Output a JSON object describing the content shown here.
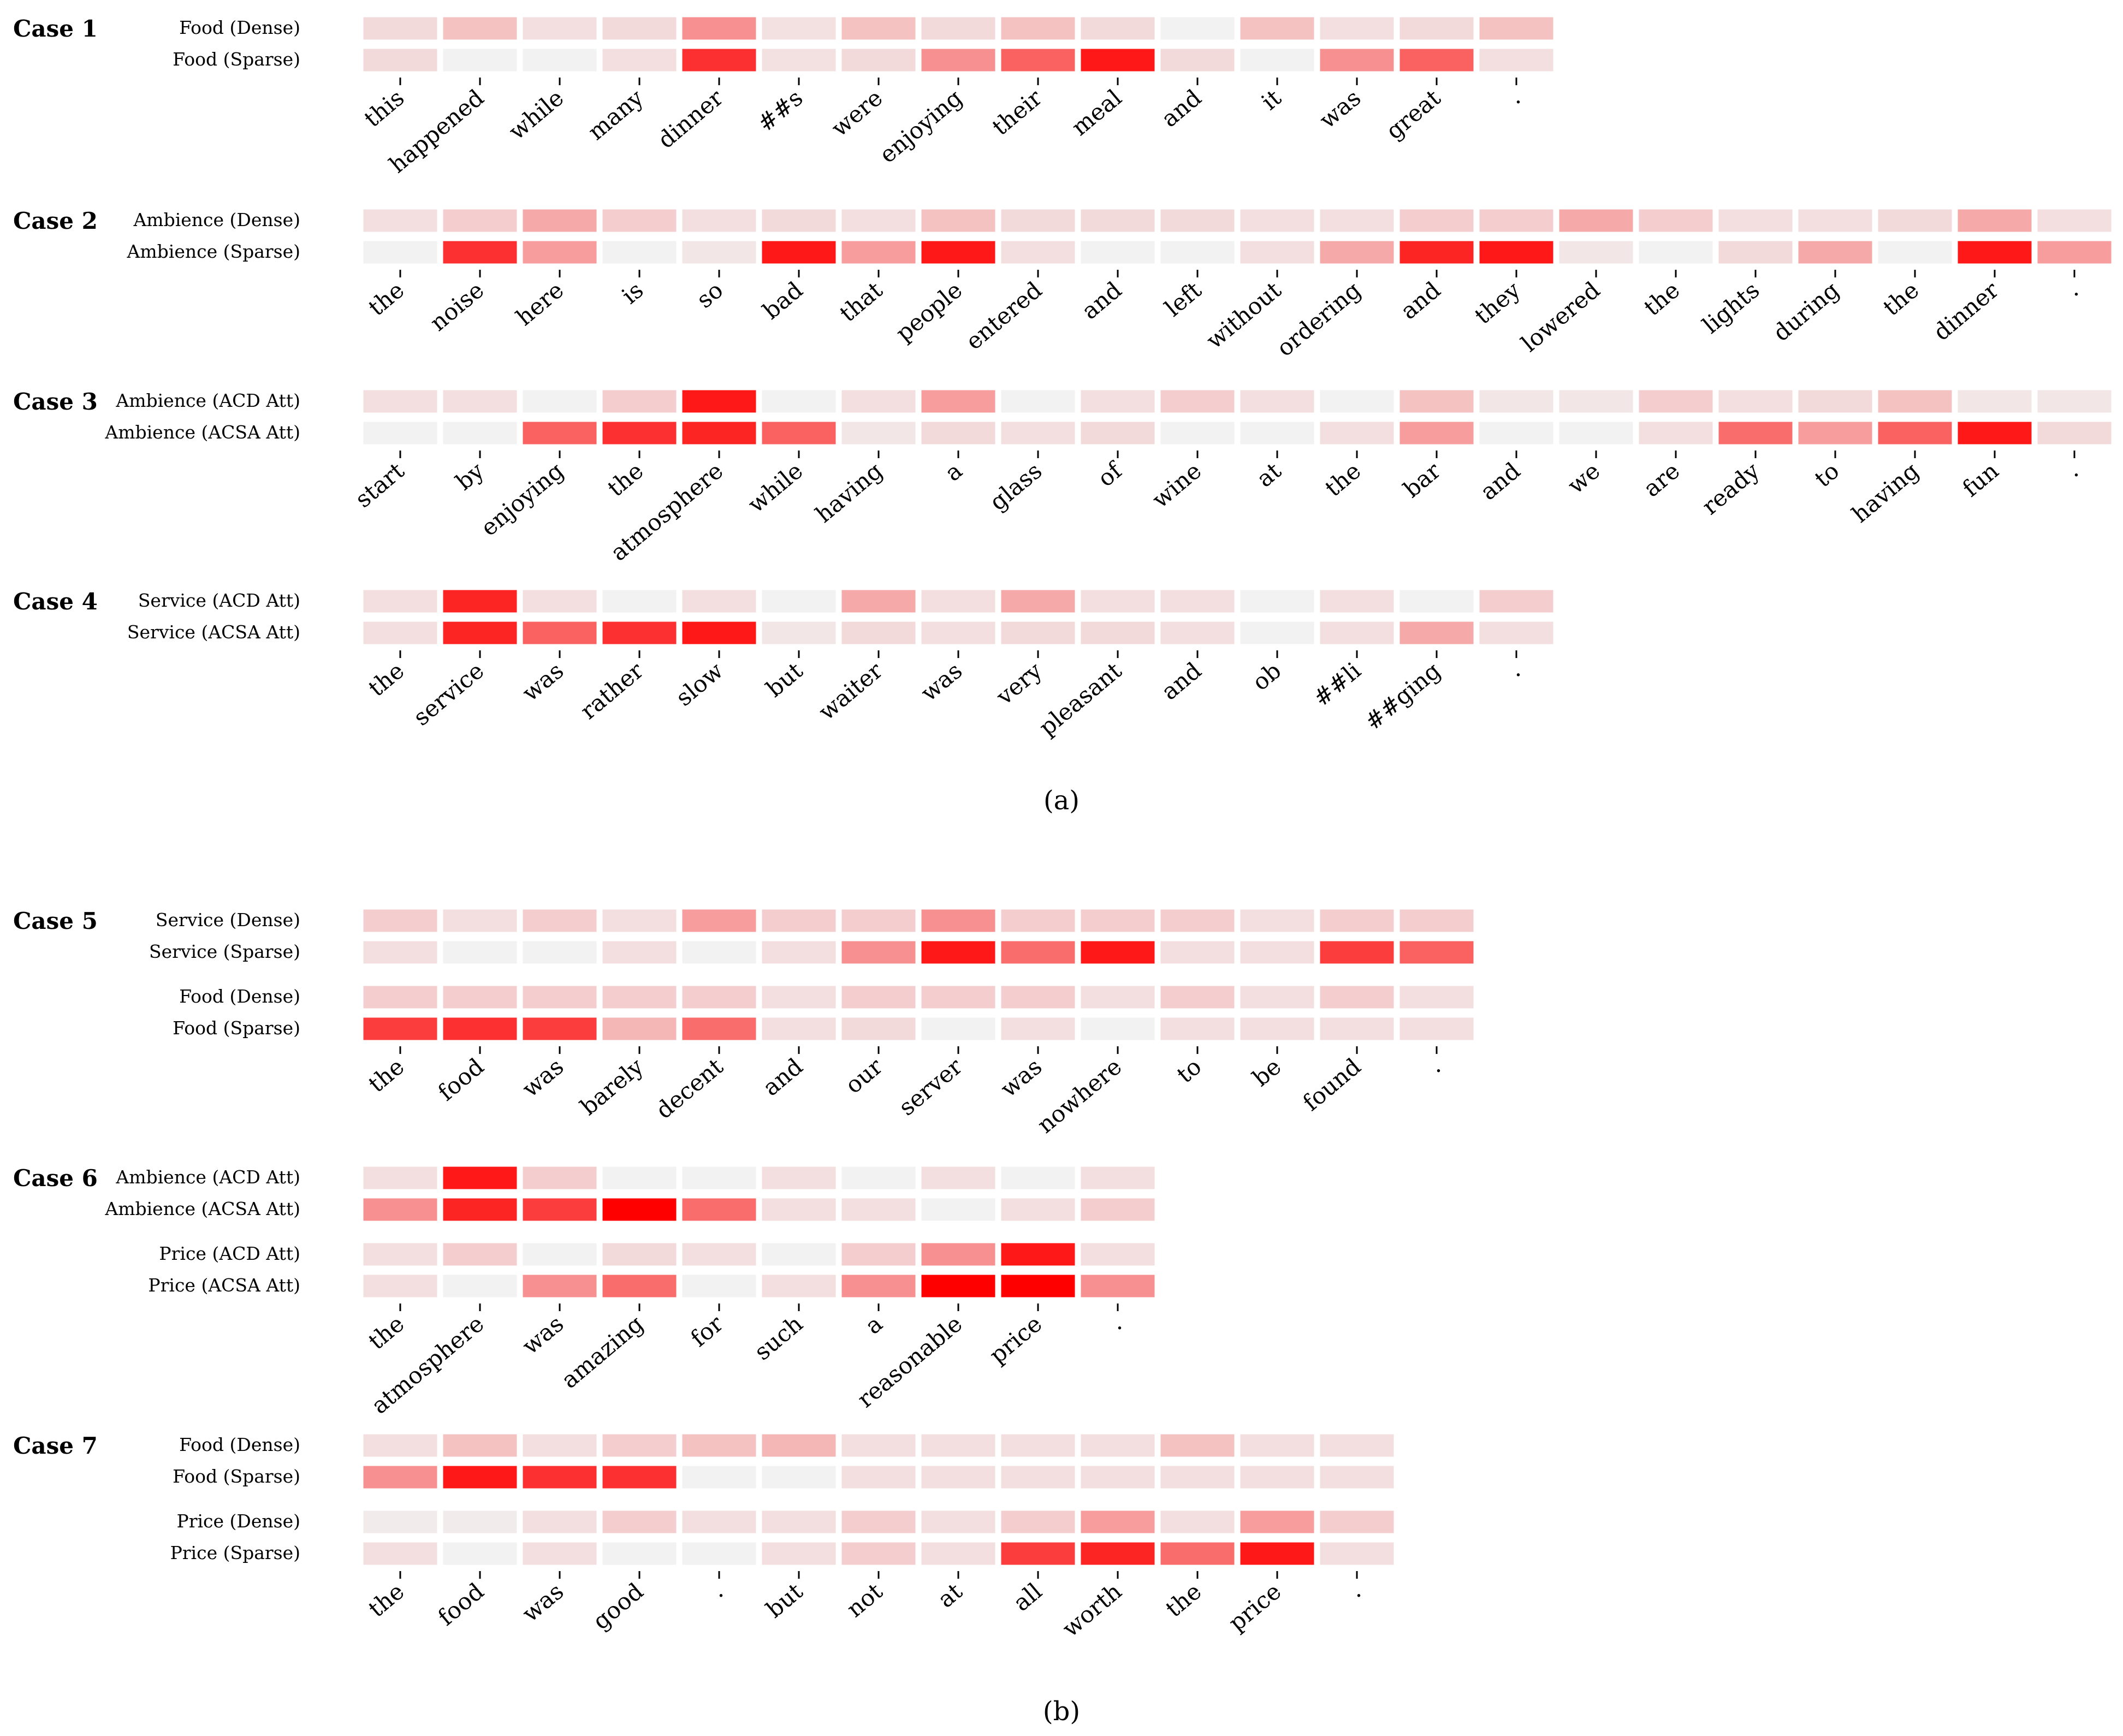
{
  "figure": {
    "panels": [
      {
        "label": "(a)"
      },
      {
        "label": "(b)"
      }
    ]
  },
  "chart_data": {
    "type": "heatmap",
    "colormap": {
      "low": "#f2f2f2",
      "high": "#ff0000"
    },
    "value_range": [
      0,
      1
    ],
    "cases": [
      {
        "title": "Case 1",
        "panel": "(a)",
        "tokens": [
          "this",
          "happened",
          "while",
          "many",
          "dinner",
          "##s",
          "were",
          "enjoying",
          "their",
          "meal",
          "and",
          "it",
          "was",
          "great",
          "."
        ],
        "groups": [
          [
            {
              "name": "Food (Dense)",
              "values": [
                0.1,
                0.2,
                0.08,
                0.1,
                0.4,
                0.07,
                0.2,
                0.1,
                0.2,
                0.1,
                0.0,
                0.2,
                0.08,
                0.1,
                0.2
              ]
            },
            {
              "name": "Food (Sparse)",
              "values": [
                0.1,
                0.0,
                0.0,
                0.08,
                0.8,
                0.07,
                0.1,
                0.4,
                0.6,
                0.9,
                0.1,
                0.0,
                0.4,
                0.6,
                0.08
              ]
            }
          ]
        ]
      },
      {
        "title": "Case 2",
        "panel": "(a)",
        "tokens": [
          "the",
          "noise",
          "here",
          "is",
          "so",
          "bad",
          "that",
          "people",
          "entered",
          "and",
          "left",
          "without",
          "ordering",
          "and",
          "they",
          "lowered",
          "the",
          "lights",
          "during",
          "the",
          "dinner",
          "."
        ],
        "groups": [
          [
            {
              "name": "Ambience (Dense)",
              "values": [
                0.08,
                0.15,
                0.3,
                0.15,
                0.08,
                0.1,
                0.08,
                0.2,
                0.1,
                0.1,
                0.1,
                0.08,
                0.08,
                0.15,
                0.15,
                0.3,
                0.15,
                0.08,
                0.08,
                0.1,
                0.3,
                0.08
              ]
            },
            {
              "name": "Ambience (Sparse)",
              "values": [
                0.0,
                0.8,
                0.35,
                0.0,
                0.05,
                0.9,
                0.35,
                0.9,
                0.08,
                0.0,
                0.0,
                0.08,
                0.3,
                0.85,
                0.9,
                0.05,
                0.0,
                0.1,
                0.3,
                0.0,
                0.9,
                0.35
              ]
            }
          ]
        ]
      },
      {
        "title": "Case 3",
        "panel": "(a)",
        "tokens": [
          "start",
          "by",
          "enjoying",
          "the",
          "atmosphere",
          "while",
          "having",
          "a",
          "glass",
          "of",
          "wine",
          "at",
          "the",
          "bar",
          "and",
          "we",
          "are",
          "ready",
          "to",
          "having",
          "fun",
          "."
        ],
        "groups": [
          [
            {
              "name": "Ambience (ACD Att)",
              "values": [
                0.08,
                0.08,
                0.0,
                0.15,
                0.9,
                0.0,
                0.08,
                0.35,
                0.0,
                0.08,
                0.15,
                0.08,
                0.0,
                0.2,
                0.05,
                0.05,
                0.15,
                0.08,
                0.1,
                0.2,
                0.05,
                0.05
              ]
            },
            {
              "name": "Ambience (ACSA Att)",
              "values": [
                0.0,
                0.0,
                0.6,
                0.8,
                0.85,
                0.6,
                0.05,
                0.1,
                0.08,
                0.1,
                0.0,
                0.0,
                0.08,
                0.35,
                0.0,
                0.0,
                0.08,
                0.55,
                0.35,
                0.6,
                0.9,
                0.1
              ]
            }
          ]
        ]
      },
      {
        "title": "Case 4",
        "panel": "(a)",
        "tokens": [
          "the",
          "service",
          "was",
          "rather",
          "slow",
          "but",
          "waiter",
          "was",
          "very",
          "pleasant",
          "and",
          "ob",
          "##li",
          "##ging",
          "."
        ],
        "groups": [
          [
            {
              "name": "Service (ACD Att)",
              "values": [
                0.08,
                0.85,
                0.08,
                0.0,
                0.08,
                0.0,
                0.3,
                0.08,
                0.3,
                0.08,
                0.08,
                0.0,
                0.08,
                0.0,
                0.15
              ]
            },
            {
              "name": "Service (ACSA Att)",
              "values": [
                0.08,
                0.85,
                0.6,
                0.8,
                0.9,
                0.05,
                0.1,
                0.08,
                0.1,
                0.1,
                0.08,
                0.0,
                0.08,
                0.3,
                0.08
              ]
            }
          ]
        ]
      },
      {
        "title": "Case 5",
        "panel": "(b)",
        "tokens": [
          "the",
          "food",
          "was",
          "barely",
          "decent",
          "and",
          "our",
          "server",
          "was",
          "nowhere",
          "to",
          "be",
          "found",
          "."
        ],
        "groups": [
          [
            {
              "name": "Service (Dense)",
              "values": [
                0.15,
                0.08,
                0.15,
                0.08,
                0.35,
                0.15,
                0.15,
                0.4,
                0.15,
                0.15,
                0.15,
                0.08,
                0.15,
                0.15
              ]
            },
            {
              "name": "Service (Sparse)",
              "values": [
                0.08,
                0.0,
                0.0,
                0.08,
                0.0,
                0.08,
                0.4,
                0.9,
                0.55,
                0.9,
                0.08,
                0.08,
                0.75,
                0.6
              ]
            }
          ],
          [
            {
              "name": "Food (Dense)",
              "values": [
                0.15,
                0.15,
                0.15,
                0.15,
                0.15,
                0.08,
                0.15,
                0.15,
                0.15,
                0.08,
                0.15,
                0.08,
                0.15,
                0.08
              ]
            },
            {
              "name": "Food (Sparse)",
              "values": [
                0.75,
                0.8,
                0.75,
                0.25,
                0.55,
                0.08,
                0.1,
                0.0,
                0.08,
                0.0,
                0.08,
                0.08,
                0.08,
                0.08
              ]
            }
          ]
        ]
      },
      {
        "title": "Case 6",
        "panel": "(b)",
        "tokens": [
          "the",
          "atmosphere",
          "was",
          "amazing",
          "for",
          "such",
          "a",
          "reasonable",
          "price",
          "."
        ],
        "groups": [
          [
            {
              "name": "Ambience (ACD Att)",
              "values": [
                0.08,
                0.9,
                0.15,
                0.0,
                0.0,
                0.08,
                0.0,
                0.08,
                0.0,
                0.08
              ]
            },
            {
              "name": "Ambience (ACSA Att)",
              "values": [
                0.4,
                0.85,
                0.75,
                1.0,
                0.55,
                0.08,
                0.08,
                0.0,
                0.08,
                0.15
              ]
            }
          ],
          [
            {
              "name": "Price (ACD Att)",
              "values": [
                0.08,
                0.15,
                0.0,
                0.1,
                0.08,
                0.0,
                0.15,
                0.4,
                0.9,
                0.08
              ]
            },
            {
              "name": "Price (ACSA Att)",
              "values": [
                0.08,
                0.0,
                0.4,
                0.55,
                0.0,
                0.08,
                0.4,
                1.0,
                1.0,
                0.4
              ]
            }
          ]
        ]
      },
      {
        "title": "Case 7",
        "panel": "(b)",
        "tokens": [
          "the",
          "food",
          "was",
          "good",
          ".",
          "but",
          "not",
          "at",
          "all",
          "worth",
          "the",
          "price",
          "."
        ],
        "groups": [
          [
            {
              "name": "Food (Dense)",
              "values": [
                0.08,
                0.2,
                0.08,
                0.15,
                0.2,
                0.25,
                0.08,
                0.08,
                0.08,
                0.08,
                0.2,
                0.08,
                0.08
              ]
            },
            {
              "name": "Food (Sparse)",
              "values": [
                0.4,
                0.9,
                0.8,
                0.8,
                0.0,
                0.0,
                0.08,
                0.08,
                0.08,
                0.08,
                0.08,
                0.08,
                0.08
              ]
            }
          ],
          [
            {
              "name": "Price (Dense)",
              "values": [
                0.03,
                0.03,
                0.08,
                0.15,
                0.08,
                0.08,
                0.15,
                0.08,
                0.15,
                0.35,
                0.08,
                0.35,
                0.15
              ]
            },
            {
              "name": "Price (Sparse)",
              "values": [
                0.08,
                0.0,
                0.08,
                0.0,
                0.0,
                0.08,
                0.15,
                0.08,
                0.75,
                0.85,
                0.55,
                0.9,
                0.08
              ]
            }
          ]
        ]
      }
    ]
  }
}
